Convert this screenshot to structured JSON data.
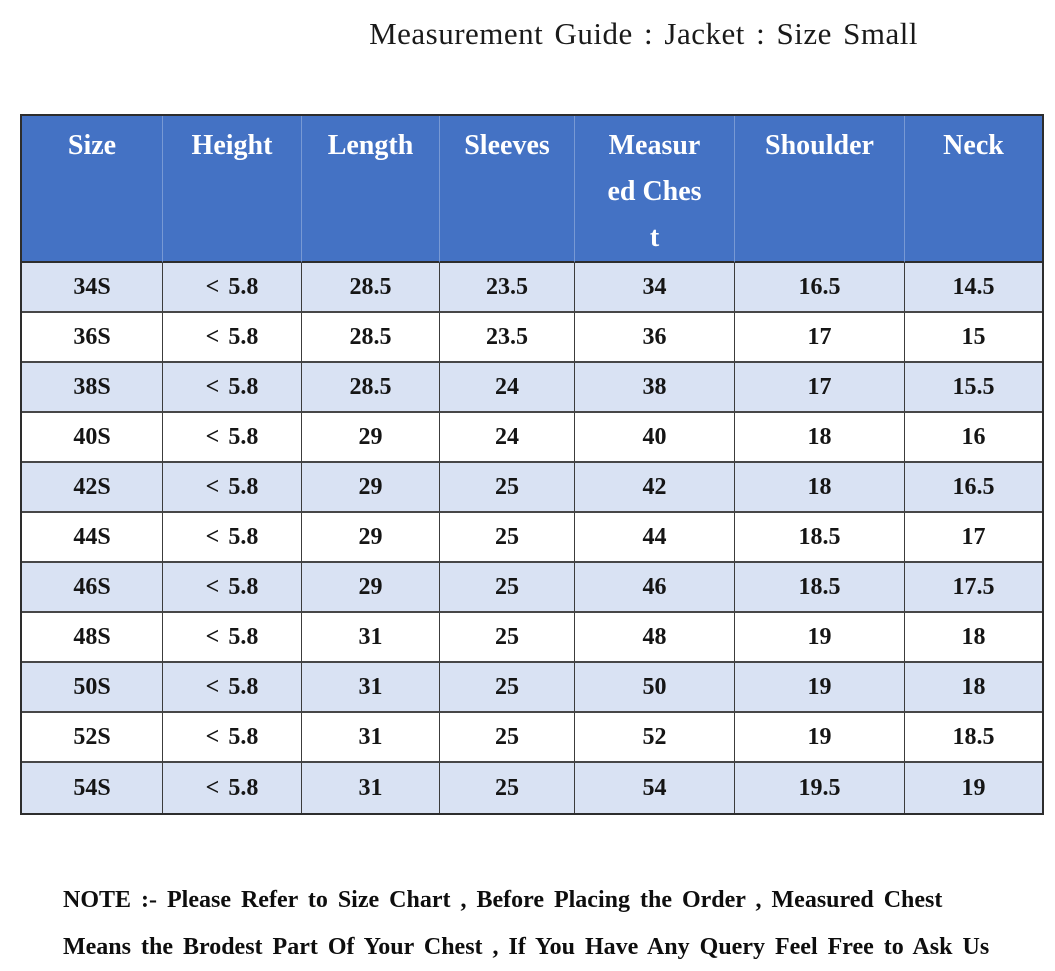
{
  "title": "Measurement Guide : Jacket : Size Small",
  "table": {
    "columns": [
      "Size",
      "Height",
      "Length",
      "Sleeves",
      "Measured Chest",
      "Shoulder",
      "Neck"
    ],
    "rows": [
      [
        "34S",
        "< 5.8",
        "28.5",
        "23.5",
        "34",
        "16.5",
        "14.5"
      ],
      [
        "36S",
        "< 5.8",
        "28.5",
        "23.5",
        "36",
        "17",
        "15"
      ],
      [
        "38S",
        "< 5.8",
        "28.5",
        "24",
        "38",
        "17",
        "15.5"
      ],
      [
        "40S",
        "< 5.8",
        "29",
        "24",
        "40",
        "18",
        "16"
      ],
      [
        "42S",
        "< 5.8",
        "29",
        "25",
        "42",
        "18",
        "16.5"
      ],
      [
        "44S",
        "< 5.8",
        "29",
        "25",
        "44",
        "18.5",
        "17"
      ],
      [
        "46S",
        "< 5.8",
        "29",
        "25",
        "46",
        "18.5",
        "17.5"
      ],
      [
        "48S",
        "< 5.8",
        "31",
        "25",
        "48",
        "19",
        "18"
      ],
      [
        "50S",
        "< 5.8",
        "31",
        "25",
        "50",
        "19",
        "18"
      ],
      [
        "52S",
        "< 5.8",
        "31",
        "25",
        "52",
        "19",
        "18.5"
      ],
      [
        "54S",
        "< 5.8",
        "31",
        "25",
        "54",
        "19.5",
        "19"
      ]
    ]
  },
  "note": {
    "lines": [
      "NOTE :- Please Refer to Size Chart , Before Placing the Order , Measured Chest",
      "Means the Brodest Part Of Your Chest , If You Have Any Query Feel Free to Ask Us"
    ]
  },
  "colors": {
    "header_bg": "#4472C4",
    "header_text": "#FFFFFF",
    "row_alt_bg": "#D9E2F3",
    "row_bg": "#FFFFFF",
    "border": "#2D2D2D",
    "body_text": "#151515"
  },
  "chart_data": {
    "type": "table",
    "title": "Measurement Guide : Jacket : Size Small",
    "columns": [
      "Size",
      "Height",
      "Length",
      "Sleeves",
      "Measured Chest",
      "Shoulder",
      "Neck"
    ],
    "rows": [
      [
        "34S",
        "< 5.8",
        "28.5",
        "23.5",
        "34",
        "16.5",
        "14.5"
      ],
      [
        "36S",
        "< 5.8",
        "28.5",
        "23.5",
        "36",
        "17",
        "15"
      ],
      [
        "38S",
        "< 5.8",
        "28.5",
        "24",
        "38",
        "17",
        "15.5"
      ],
      [
        "40S",
        "< 5.8",
        "29",
        "24",
        "40",
        "18",
        "16"
      ],
      [
        "42S",
        "< 5.8",
        "29",
        "25",
        "42",
        "18",
        "16.5"
      ],
      [
        "44S",
        "< 5.8",
        "29",
        "25",
        "44",
        "18.5",
        "17"
      ],
      [
        "46S",
        "< 5.8",
        "29",
        "25",
        "46",
        "18.5",
        "17.5"
      ],
      [
        "48S",
        "< 5.8",
        "31",
        "25",
        "48",
        "19",
        "18"
      ],
      [
        "50S",
        "< 5.8",
        "31",
        "25",
        "50",
        "19",
        "18"
      ],
      [
        "52S",
        "< 5.8",
        "31",
        "25",
        "52",
        "19",
        "18.5"
      ],
      [
        "54S",
        "< 5.8",
        "31",
        "25",
        "54",
        "19.5",
        "19"
      ]
    ]
  }
}
